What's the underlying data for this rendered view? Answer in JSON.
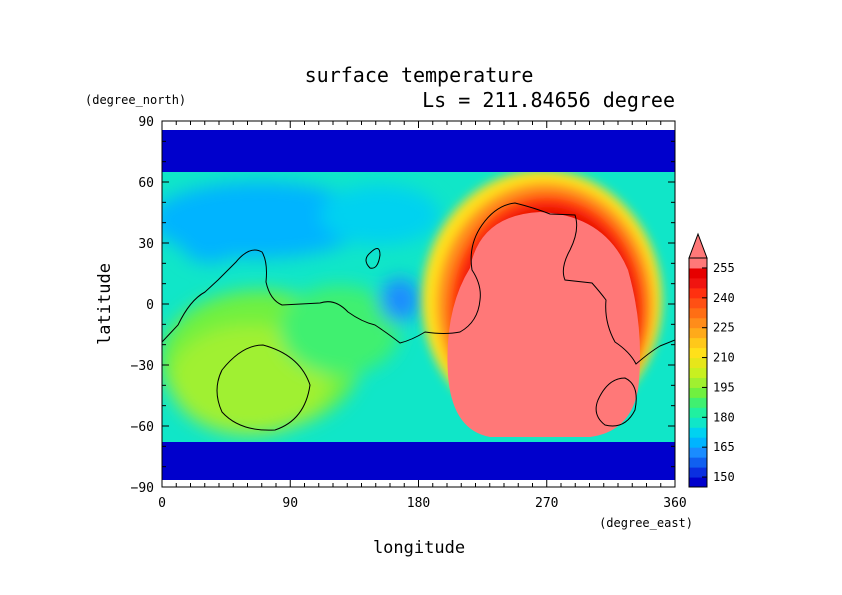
{
  "chart_data": {
    "type": "heatmap",
    "title": "surface temperature",
    "subtitle": "Ls = 211.84656 degree",
    "xlabel": "longitude",
    "ylabel": "latitude",
    "xunit": "(degree_east)",
    "yunit": "(degree_north)",
    "xlim": [
      0,
      360
    ],
    "ylim": [
      -90,
      90
    ],
    "xticks": [
      "0",
      "90",
      "180",
      "270",
      "360"
    ],
    "yticks": [
      "90",
      "60",
      "30",
      "0",
      "−30",
      "−60",
      "−90"
    ],
    "colorbar": {
      "labels": [
        "255",
        "240",
        "225",
        "210",
        "195",
        "180",
        "165",
        "150"
      ],
      "levels": [
        145,
        150,
        155,
        160,
        165,
        170,
        175,
        180,
        185,
        190,
        195,
        200,
        205,
        210,
        215,
        220,
        225,
        230,
        235,
        240,
        245,
        250,
        255
      ],
      "colors": [
        "#0000cc",
        "#0a2fe0",
        "#1060f0",
        "#1a8cff",
        "#00b4ff",
        "#00d2f0",
        "#10e6c8",
        "#20f0a0",
        "#40f070",
        "#70f040",
        "#a0f030",
        "#c8f020",
        "#e6e61a",
        "#ffe01a",
        "#ffc81a",
        "#ffaa1a",
        "#ff8c1a",
        "#ff6e14",
        "#ff5014",
        "#ff3010",
        "#f01410",
        "#e60000",
        "#ff7878"
      ],
      "extend": "max"
    },
    "field_description": {
      "polar_bands": "about 150 K poleward of 65N and 68S",
      "western_hemisphere_lon_0_200": "about 170-205 K",
      "hot_region_lon_220_335_lat_-65_45": "above 255 K"
    }
  }
}
